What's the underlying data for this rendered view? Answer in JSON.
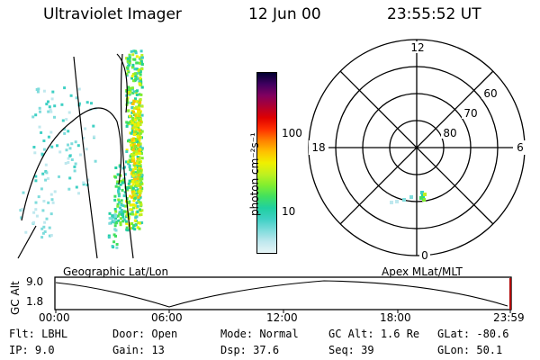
{
  "header": {
    "title": "Ultraviolet Imager",
    "date": "12 Jun 00",
    "time": "23:55:52 UT"
  },
  "colorbar": {
    "label": "photon cm⁻²s⁻¹",
    "ticks": [
      "100",
      "10"
    ]
  },
  "polar": {
    "mlt_labels": {
      "top": "12",
      "left": "18",
      "right": "6",
      "bottom": "0"
    },
    "lat_labels": [
      "60",
      "70",
      "80"
    ]
  },
  "track": {
    "left_caption": "Geographic Lat/Lon",
    "right_caption": "Apex MLat/MLT",
    "axis_label": "GC Alt",
    "y_ticks": [
      "9.0",
      "1.8"
    ],
    "x_ticks": [
      "00:00",
      "06:00",
      "12:00",
      "18:00",
      "23:59"
    ]
  },
  "status": {
    "row1": [
      {
        "label": "Flt:",
        "value": "LBHL"
      },
      {
        "label": "Door:",
        "value": "Open"
      },
      {
        "label": "Mode:",
        "value": "Normal"
      },
      {
        "label": "GC Alt:",
        "value": "1.6 Re"
      },
      {
        "label": "GLat:",
        "value": "-80.6"
      }
    ],
    "row2": [
      {
        "label": "IP:",
        "value": "9.0"
      },
      {
        "label": "Gain:",
        "value": "13"
      },
      {
        "label": "Dsp:",
        "value": "37.6"
      },
      {
        "label": "Seq:",
        "value": "39"
      },
      {
        "label": "GLon:",
        "value": "50.1"
      }
    ]
  },
  "colors": {
    "scale": [
      "#e6f4f6",
      "#bfe8ee",
      "#7fdcdc",
      "#3fd0c4",
      "#20d0a0",
      "#40e060",
      "#80ee30",
      "#c0f020",
      "#f0f000",
      "#ffc000",
      "#ff8000",
      "#ff3000",
      "#e00000",
      "#b00030",
      "#800060",
      "#400060",
      "#000030"
    ],
    "marker": "#b00000"
  }
}
